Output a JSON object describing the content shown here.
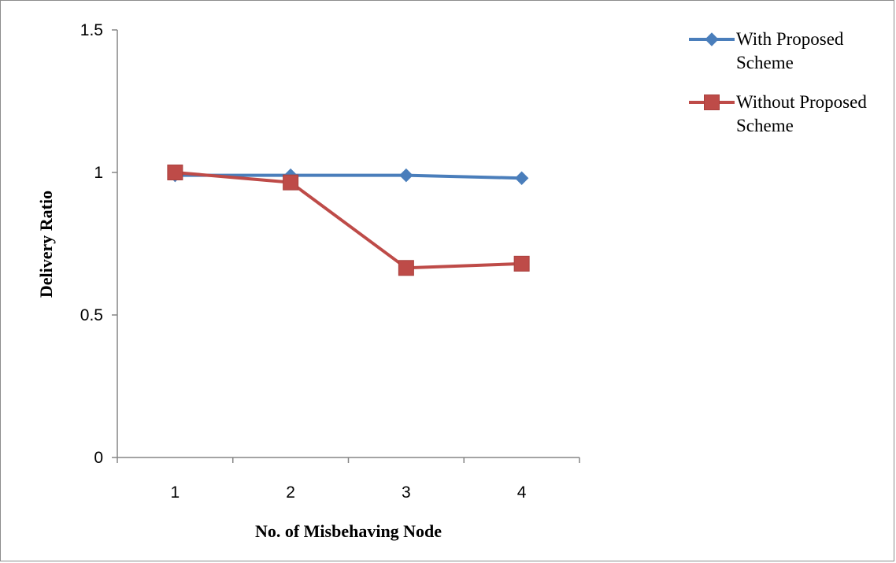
{
  "chart_data": {
    "type": "line",
    "title": "",
    "xlabel": "No. of Misbehaving Node",
    "ylabel": "Delivery Ratio",
    "categories": [
      "1",
      "2",
      "3",
      "4"
    ],
    "ylim": [
      0,
      1.5
    ],
    "yticks": [
      "0",
      "0.5",
      "1",
      "1.5"
    ],
    "grid": false,
    "legend_position": "top-right",
    "series": [
      {
        "name": "With Proposed Scheme",
        "name_lines": [
          "With Proposed",
          "Scheme"
        ],
        "values": [
          0.99,
          0.99,
          0.99,
          0.98
        ],
        "color": "#4a7ebb",
        "marker": "diamond"
      },
      {
        "name": "Without Proposed Scheme",
        "name_lines": [
          "Without Proposed",
          "Scheme"
        ],
        "values": [
          1.0,
          0.965,
          0.665,
          0.68
        ],
        "color": "#be4b48",
        "marker": "square"
      }
    ]
  }
}
